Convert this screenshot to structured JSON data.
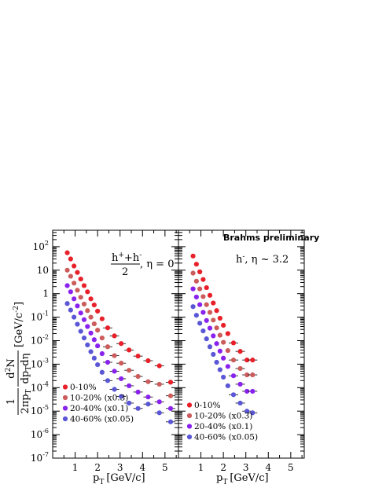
{
  "colors": {
    "0-10%": "#e8202a",
    "10-20% (x0.3)": "#cc5c5c",
    "20-40% (x0.1)": "#8a22ee",
    "40-60% (x0.05)": "#5a56d6",
    "axis": "#000000"
  },
  "y_axis": {
    "label_fraction_num": "1",
    "label_fraction_den": "2πp",
    "label_fraction_den_sub": "T",
    "label_deriv_num": "d",
    "label_deriv_num_sup": "2",
    "label_deriv_num_tail": "N",
    "label_deriv_den": "dp",
    "label_deriv_den_sub": "T",
    "label_deriv_den_tail": "dη",
    "label_units": "[GeV/c",
    "label_units_sup": "-2",
    "label_units_tail": "]"
  },
  "chart_data": [
    {
      "type": "scatter",
      "panel": "left",
      "annotation": {
        "numerator": "h",
        "num_sup1": "+",
        "num_mid": "+h",
        "num_sup2": "-",
        "denominator": "2",
        "tail": ", η = 0"
      },
      "xlabel": "p",
      "xlabel_sub": "T",
      "xlabel_units": "[GeV/c]",
      "xlim": [
        0.0,
        5.6
      ],
      "ylim": [
        1e-07,
        500
      ],
      "yscale": "log",
      "xticks": [
        1,
        2,
        3,
        4,
        5
      ],
      "yticks": [
        {
          "value": 1e-07,
          "base": "10",
          "exp": "-7"
        },
        {
          "value": 1e-06,
          "base": "10",
          "exp": "-6"
        },
        {
          "value": 1e-05,
          "base": "10",
          "exp": "-5"
        },
        {
          "value": 0.0001,
          "base": "10",
          "exp": "-4"
        },
        {
          "value": 0.001,
          "base": "10",
          "exp": "-3"
        },
        {
          "value": 0.01,
          "base": "10",
          "exp": "-2"
        },
        {
          "value": 0.1,
          "base": "10",
          "exp": "-1"
        },
        {
          "value": 1,
          "base": "1",
          "exp": ""
        },
        {
          "value": 10,
          "base": "10",
          "exp": ""
        },
        {
          "value": 100,
          "base": "10",
          "exp": "2"
        }
      ],
      "legend": {
        "placement": "bottom-left",
        "entries": [
          "0-10%",
          "10-20% (x0.3)",
          "20-40% (x0.1)",
          "40-60% (x0.05)"
        ]
      },
      "series": [
        {
          "name": "0-10%",
          "x": [
            0.65,
            0.8,
            0.95,
            1.1,
            1.25,
            1.4,
            1.55,
            1.7,
            1.85,
            2.0,
            2.2,
            2.45,
            2.75,
            3.05,
            3.4,
            3.8,
            4.25,
            4.75,
            5.25
          ],
          "y": [
            55,
            30,
            15,
            8,
            4.2,
            2.2,
            1.2,
            0.6,
            0.33,
            0.18,
            0.085,
            0.035,
            0.016,
            0.0075,
            0.004,
            0.0022,
            0.0014,
            0.00085,
            0.00017
          ]
        },
        {
          "name": "10-20% (x0.3)",
          "x": [
            0.65,
            0.8,
            0.95,
            1.1,
            1.25,
            1.4,
            1.55,
            1.7,
            1.85,
            2.0,
            2.2,
            2.45,
            2.75,
            3.05,
            3.4,
            3.8,
            4.25,
            4.75,
            5.25
          ],
          "y": [
            10,
            5.5,
            2.8,
            1.4,
            0.7,
            0.36,
            0.19,
            0.1,
            0.052,
            0.028,
            0.013,
            0.0055,
            0.0023,
            0.0011,
            0.00055,
            0.0003,
            0.00018,
            0.00014,
            4.5e-05
          ]
        },
        {
          "name": "20-40% (x0.1)",
          "x": [
            0.65,
            0.8,
            0.95,
            1.1,
            1.25,
            1.4,
            1.55,
            1.7,
            1.85,
            2.0,
            2.2,
            2.45,
            2.75,
            3.05,
            3.4,
            3.8,
            4.25,
            4.75,
            5.25
          ],
          "y": [
            2.2,
            1.2,
            0.6,
            0.3,
            0.15,
            0.078,
            0.04,
            0.021,
            0.011,
            0.006,
            0.0028,
            0.0012,
            0.0005,
            0.00024,
            0.00012,
            6.5e-05,
            4e-05,
            2.5e-05,
            1.3e-05
          ]
        },
        {
          "name": "40-60% (x0.05)",
          "x": [
            0.65,
            0.8,
            0.95,
            1.1,
            1.25,
            1.4,
            1.55,
            1.7,
            1.85,
            2.0,
            2.2,
            2.45,
            2.75,
            3.05,
            3.4,
            3.8,
            4.25,
            4.75,
            5.25
          ],
          "y": [
            0.38,
            0.2,
            0.1,
            0.05,
            0.025,
            0.013,
            0.0066,
            0.0034,
            0.0018,
            0.00095,
            0.00045,
            0.0002,
            8.5e-05,
            4.2e-05,
            2.2e-05,
            1.3e-05,
            2e-05,
            8.5e-06,
            3.5e-06
          ]
        }
      ]
    },
    {
      "type": "scatter",
      "panel": "right",
      "title": "Brahms preliminary",
      "annotation": {
        "numerator": "h",
        "num_sup1": "-",
        "tail": ", η ~ 3.2"
      },
      "xlabel": "p",
      "xlabel_sub": "T",
      "xlabel_units": "[GeV/c]",
      "xlim": [
        0.0,
        5.6
      ],
      "ylim": [
        1e-07,
        500
      ],
      "yscale": "log",
      "xticks": [
        1,
        2,
        3,
        4,
        5
      ],
      "legend": {
        "placement": "bottom-left",
        "entries": [
          "0-10%",
          "10-20% (x0.3)",
          "20-40% (x0.1)",
          "40-60% (x0.05)"
        ]
      },
      "series": [
        {
          "name": "0-10%",
          "x": [
            0.65,
            0.8,
            0.95,
            1.1,
            1.25,
            1.4,
            1.55,
            1.7,
            1.85,
            2.0,
            2.2,
            2.45,
            2.75,
            3.05,
            3.3
          ],
          "y": [
            40,
            18,
            8.5,
            4,
            1.8,
            0.85,
            0.4,
            0.19,
            0.09,
            0.045,
            0.02,
            0.008,
            0.0035,
            0.0015,
            0.0015
          ]
        },
        {
          "name": "10-20% (x0.3)",
          "x": [
            0.65,
            0.8,
            0.95,
            1.1,
            1.25,
            1.4,
            1.55,
            1.7,
            1.85,
            2.0,
            2.2,
            2.45,
            2.75,
            3.05,
            3.3
          ],
          "y": [
            7.5,
            3.4,
            1.6,
            0.75,
            0.34,
            0.16,
            0.075,
            0.035,
            0.017,
            0.0085,
            0.0038,
            0.0015,
            0.00065,
            0.00035,
            0.00035
          ]
        },
        {
          "name": "20-40% (x0.1)",
          "x": [
            0.65,
            0.8,
            0.95,
            1.1,
            1.25,
            1.4,
            1.55,
            1.7,
            1.85,
            2.0,
            2.2,
            2.45,
            2.75,
            3.05,
            3.3
          ],
          "y": [
            1.6,
            0.72,
            0.34,
            0.16,
            0.072,
            0.034,
            0.016,
            0.0075,
            0.0036,
            0.0018,
            0.0008,
            0.00032,
            0.00014,
            7e-05,
            7e-05
          ]
        },
        {
          "name": "40-60% (x0.05)",
          "x": [
            0.65,
            0.8,
            0.95,
            1.1,
            1.25,
            1.4,
            1.55,
            1.7,
            1.85,
            2.0,
            2.2,
            2.45,
            2.75,
            3.05,
            3.3
          ],
          "y": [
            0.28,
            0.12,
            0.055,
            0.026,
            0.012,
            0.0055,
            0.0026,
            0.0012,
            0.00058,
            0.00028,
            0.00012,
            5e-05,
            2.2e-05,
            1e-05,
            8.5e-06
          ]
        }
      ]
    }
  ]
}
